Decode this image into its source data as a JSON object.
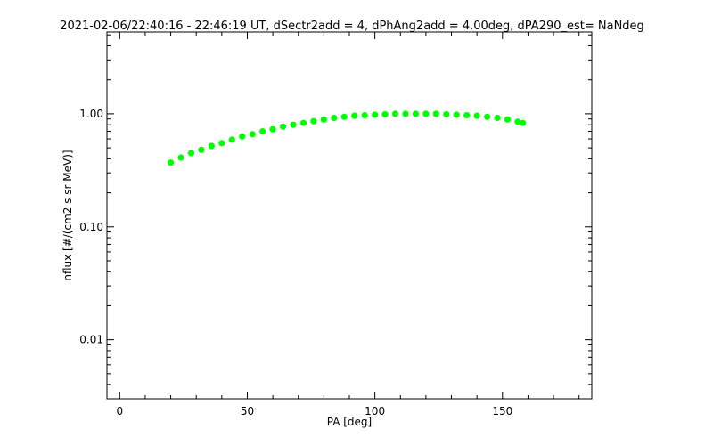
{
  "chart_data": {
    "type": "scatter",
    "title": "2021-02-06/22:40:16 - 22:46:19 UT, dSectr2add = 4, dPhAng2add = 4.00deg, dPA290_est=   NaNdeg",
    "xlabel": "PA [deg]",
    "ylabel": "nflux [#/(cm2 s sr MeV)]",
    "xlim": [
      -5,
      185
    ],
    "ylim": [
      0.003,
      5.3
    ],
    "yscale": "log",
    "grid": false,
    "x_ticks": [
      0,
      50,
      100,
      150
    ],
    "x_tick_labels": [
      "0",
      "50",
      "100",
      "150"
    ],
    "y_ticks": [
      0.01,
      0.1,
      1.0
    ],
    "y_tick_labels": [
      "0.01",
      "0.10",
      "1.00"
    ],
    "series": [
      {
        "color": "#00ff00",
        "x": [
          20,
          24,
          28,
          32,
          36,
          40,
          44,
          48,
          52,
          56,
          60,
          64,
          68,
          72,
          76,
          80,
          84,
          88,
          92,
          96,
          100,
          104,
          108,
          112,
          116,
          120,
          124,
          128,
          132,
          136,
          140,
          144,
          148,
          152,
          156,
          158
        ],
        "y": [
          0.37,
          0.41,
          0.45,
          0.48,
          0.52,
          0.55,
          0.59,
          0.63,
          0.66,
          0.7,
          0.73,
          0.77,
          0.8,
          0.83,
          0.86,
          0.89,
          0.92,
          0.94,
          0.96,
          0.97,
          0.98,
          0.99,
          1.0,
          1.0,
          1.0,
          1.0,
          1.0,
          0.99,
          0.98,
          0.97,
          0.96,
          0.94,
          0.92,
          0.89,
          0.85,
          0.83
        ]
      }
    ]
  }
}
